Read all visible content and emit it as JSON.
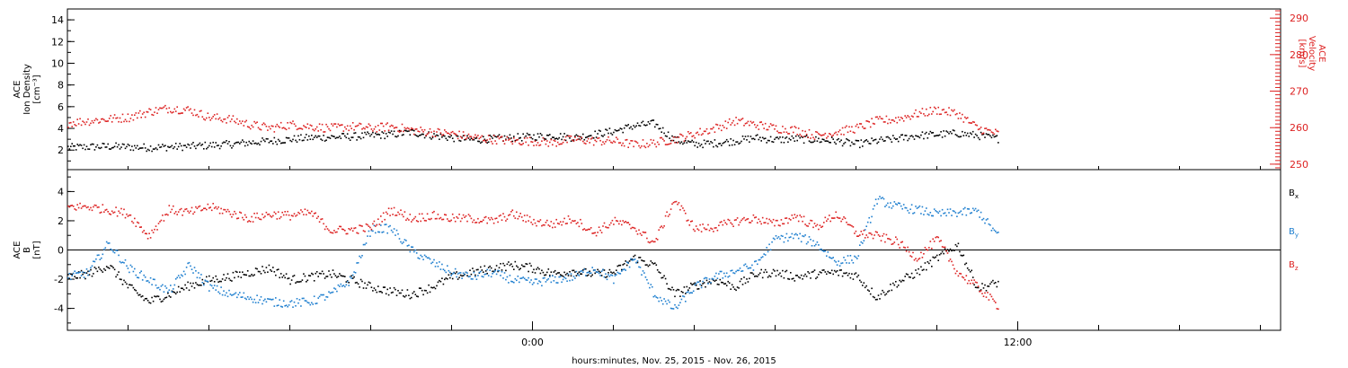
{
  "chart_data": {
    "type": "scatter",
    "xlabel": "hours:minutes, Nov. 25, 2015 - Nov. 26, 2015",
    "x_unit": "hours relative to 0:00 Nov. 26, 2015",
    "xlim": [
      -11.5,
      18.5
    ],
    "xticks": [
      {
        "value": 0,
        "label": "0:00"
      },
      {
        "value": 12,
        "label": "12:00"
      }
    ],
    "x_minor_ticks": [
      -11.5,
      -10,
      -8,
      -6,
      -4,
      -2,
      0,
      2,
      4,
      6,
      8,
      10,
      12,
      14,
      16,
      18
    ],
    "panels": [
      {
        "id": "density-velocity",
        "ylabel_lines": [
          "ACE",
          "Ion Density",
          "[cm⁻³]"
        ],
        "ylim": [
          0.2,
          15
        ],
        "yticks": [
          2,
          4,
          6,
          8,
          10,
          12,
          14
        ],
        "ylabel_right_lines": [
          "ACE",
          "Velocity",
          "[km/s]"
        ],
        "ylim_right": [
          248.5,
          292.5
        ],
        "yticks_right": [
          250,
          260,
          270,
          280,
          290
        ],
        "colors": {
          "density": "#000000",
          "velocity": "#dd2222"
        },
        "series": [
          {
            "axis": "left",
            "color": "#000000",
            "x": [
              -11.5,
              -10.5,
              -9.5,
              -8.5,
              -7.5,
              -6.5,
              -5.5,
              -4.5,
              -3.5,
              -3,
              -2.5,
              -2,
              -1.5,
              -1,
              -0.5,
              0,
              0.5,
              1,
              1.5,
              2,
              2.5,
              3,
              3.5,
              4,
              4.5,
              5,
              5.5,
              6,
              6.5,
              7,
              7.5,
              8,
              8.5,
              9,
              9.5,
              10,
              10.5,
              11,
              11.5
            ],
            "values": [
              2.3,
              2.4,
              2.3,
              2.4,
              2.6,
              2.9,
              3.2,
              3.3,
              3.5,
              3.7,
              3.4,
              3.2,
              3.0,
              3.1,
              3.2,
              3.3,
              3.4,
              3.2,
              3.5,
              3.8,
              4.3,
              4.5,
              3.0,
              2.6,
              2.7,
              2.9,
              3.2,
              3.0,
              3.1,
              3.0,
              2.9,
              2.6,
              2.9,
              3.1,
              3.4,
              3.5,
              3.6,
              3.4,
              3.1
            ],
            "spread": 0.35
          },
          {
            "axis": "right",
            "color": "#dd2222",
            "x": [
              -11.5,
              -11,
              -10.5,
              -10,
              -9.5,
              -9,
              -8.5,
              -8,
              -7.5,
              -7,
              -6.5,
              -6,
              -5.5,
              -5,
              -4.5,
              -4,
              -3.5,
              -3,
              -2.5,
              -2,
              -1.5,
              -1,
              -0.5,
              0,
              0.5,
              1,
              1.5,
              2,
              2.5,
              3,
              3.5,
              4,
              4.5,
              5,
              5.5,
              6,
              6.5,
              7,
              7.5,
              8,
              8.5,
              9,
              9.5,
              10,
              10.5,
              11,
              11.5
            ],
            "values": [
              261.5,
              262.0,
              262.5,
              263.0,
              264.5,
              265.5,
              265.0,
              263.0,
              262.5,
              261.0,
              260.0,
              261.0,
              260.5,
              260.0,
              260.5,
              260.0,
              260.5,
              259.5,
              259.0,
              258.5,
              257.5,
              257.0,
              256.5,
              256.5,
              256.0,
              257.0,
              256.5,
              256.5,
              255.5,
              256.0,
              257.0,
              258.5,
              260.0,
              262.0,
              261.0,
              260.0,
              259.5,
              258.0,
              259.0,
              260.0,
              262.0,
              262.5,
              264.0,
              265.0,
              264.0,
              260.0,
              258.5
            ],
            "spread": 1.2
          }
        ]
      },
      {
        "id": "magnetic-field",
        "ylabel_lines": [
          "ACE",
          "B",
          "[nT]"
        ],
        "ylim": [
          -5.5,
          5.5
        ],
        "yticks": [
          -4,
          -2,
          0,
          2,
          4
        ],
        "zero_line": true,
        "legend": {
          "placement": "right",
          "entries": [
            "Bx",
            "By",
            "Bz"
          ]
        },
        "series": [
          {
            "name": "Bx",
            "color": "#000000",
            "x": [
              -11.5,
              -11,
              -10.5,
              -10,
              -9.5,
              -9,
              -8.5,
              -8,
              -7.5,
              -7,
              -6.5,
              -6,
              -5.5,
              -5,
              -4.5,
              -4,
              -3.5,
              -3,
              -2.5,
              -2,
              -1.5,
              -1,
              -0.5,
              0,
              0.5,
              1,
              1.5,
              2,
              2.5,
              3,
              3.5,
              4,
              4.5,
              5,
              5.5,
              6,
              6.5,
              7,
              7.5,
              8,
              8.5,
              9,
              9.5,
              10,
              10.5,
              11,
              11.5
            ],
            "values": [
              -1.8,
              -1.6,
              -1.0,
              -2.5,
              -3.5,
              -3.0,
              -2.4,
              -2.0,
              -1.8,
              -1.5,
              -1.2,
              -2.0,
              -1.8,
              -1.6,
              -2.0,
              -2.5,
              -2.8,
              -3.0,
              -2.5,
              -1.8,
              -1.5,
              -1.2,
              -1.0,
              -1.2,
              -1.6,
              -1.4,
              -1.6,
              -1.5,
              -0.5,
              -1.0,
              -3.0,
              -2.4,
              -2.0,
              -2.5,
              -1.6,
              -1.5,
              -1.8,
              -1.6,
              -1.5,
              -1.7,
              -3.2,
              -2.2,
              -1.5,
              -0.5,
              0.4,
              -2.6,
              -2.2
            ],
            "spread": 0.3
          },
          {
            "name": "By",
            "color": "#1f7fcf",
            "x": [
              -11.5,
              -11,
              -10.5,
              -10,
              -9.5,
              -9,
              -8.5,
              -8,
              -7.5,
              -7,
              -6.5,
              -6,
              -5.5,
              -5,
              -4.5,
              -4,
              -3.5,
              -3,
              -2.5,
              -2,
              -1.5,
              -1,
              -0.5,
              0,
              0.5,
              1,
              1.5,
              2,
              2.5,
              3,
              3.5,
              4,
              4.5,
              5,
              5.5,
              6,
              6.5,
              7,
              7.5,
              8,
              8.5,
              9,
              9.5,
              10,
              10.5,
              11,
              11.5
            ],
            "values": [
              -1.8,
              -1.5,
              0.5,
              -1.2,
              -2.0,
              -2.8,
              -1.0,
              -2.5,
              -3.0,
              -3.2,
              -3.5,
              -3.6,
              -3.5,
              -3.0,
              -2.0,
              1.5,
              1.5,
              0.0,
              -0.8,
              -1.5,
              -1.8,
              -1.5,
              -2.0,
              -2.2,
              -2.0,
              -1.8,
              -1.2,
              -2.0,
              -0.5,
              -3.0,
              -4.0,
              -2.5,
              -1.8,
              -1.4,
              -1.0,
              0.8,
              1.0,
              0.5,
              -0.8,
              -0.5,
              3.5,
              3.0,
              2.8,
              2.5,
              2.6,
              2.7,
              1.0
            ],
            "spread": 0.3
          },
          {
            "name": "Bz",
            "color": "#dd2222",
            "x": [
              -11.5,
              -11,
              -10.5,
              -10,
              -9.5,
              -9,
              -8.5,
              -8,
              -7.5,
              -7,
              -6.5,
              -6,
              -5.5,
              -5,
              -4.5,
              -4,
              -3.5,
              -3,
              -2.5,
              -2,
              -1.5,
              -1,
              -0.5,
              0,
              0.5,
              1,
              1.5,
              2,
              2.5,
              3,
              3.5,
              4,
              4.5,
              5,
              5.5,
              6,
              6.5,
              7,
              7.5,
              8,
              8.5,
              9,
              9.5,
              10,
              10.5,
              11,
              11.5
            ],
            "values": [
              3.0,
              3.0,
              2.8,
              2.5,
              1.0,
              2.8,
              2.6,
              3.0,
              2.6,
              2.2,
              2.5,
              2.4,
              2.6,
              1.4,
              1.4,
              1.6,
              2.8,
              2.2,
              2.4,
              2.2,
              2.2,
              2.0,
              2.5,
              2.0,
              1.8,
              2.2,
              1.2,
              2.0,
              1.6,
              0.5,
              3.5,
              1.5,
              1.6,
              2.0,
              2.2,
              1.8,
              2.4,
              1.6,
              2.5,
              1.2,
              1.0,
              0.6,
              -0.5,
              0.8,
              -1.5,
              -2.5,
              -3.8
            ],
            "spread": 0.3
          }
        ]
      }
    ]
  }
}
